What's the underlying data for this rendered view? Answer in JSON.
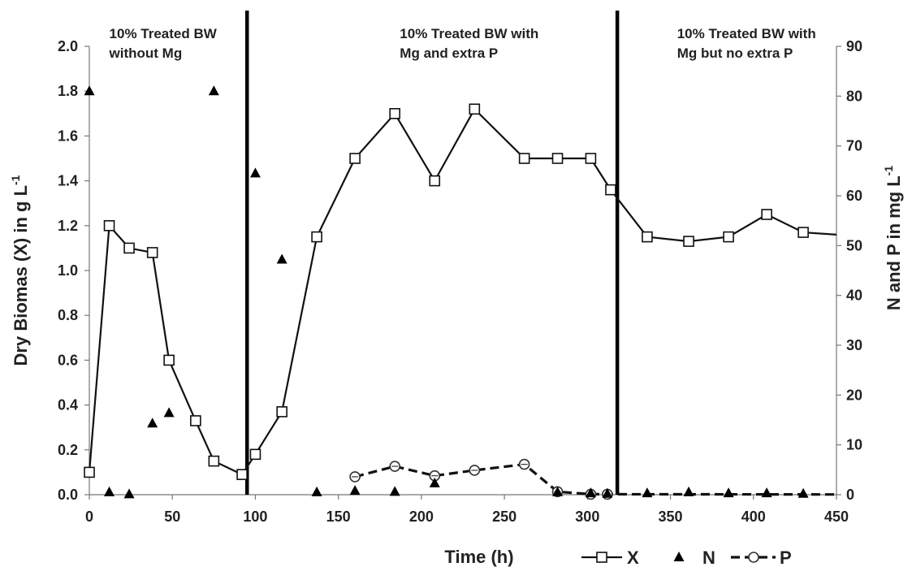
{
  "chart_data": {
    "type": "line",
    "xlabel": "Time (h)",
    "ylabel_left": "Dry Biomas (X) in g L",
    "ylabel_left_sup": "-1",
    "ylabel_right": "N and P in mg L",
    "ylabel_right_sup": "-1",
    "xlim": [
      0,
      450
    ],
    "ylim_left": [
      0,
      2.0
    ],
    "ylim_right": [
      0,
      90
    ],
    "x_ticks": [
      0,
      50,
      100,
      150,
      200,
      250,
      300,
      350,
      400,
      450
    ],
    "y_left_ticks": [
      "0.0",
      "0.2",
      "0.4",
      "0.6",
      "0.8",
      "1.0",
      "1.2",
      "1.4",
      "1.6",
      "1.8",
      "2.0"
    ],
    "y_right_ticks": [
      0,
      10,
      20,
      30,
      40,
      50,
      60,
      70,
      80,
      90
    ],
    "phase_lines": [
      95,
      318
    ],
    "annotations": [
      {
        "lines": [
          "10% Treated BW",
          "without Mg"
        ],
        "x": 12
      },
      {
        "lines": [
          "10% Treated BW with",
          "Mg and extra P"
        ],
        "x": 187
      },
      {
        "lines": [
          "10% Treated BW with",
          "Mg but no extra P"
        ],
        "x": 354
      }
    ],
    "series": [
      {
        "name": "X",
        "axis": "left",
        "style": "solid-square",
        "x": [
          0,
          12,
          24,
          38,
          48,
          64,
          75,
          92,
          100,
          116,
          137,
          160,
          184,
          208,
          232,
          262,
          282,
          302,
          314,
          336,
          361,
          385,
          408,
          430
        ],
        "y": [
          0.1,
          1.2,
          1.1,
          1.08,
          0.6,
          0.33,
          0.15,
          0.09,
          0.18,
          0.37,
          1.15,
          1.5,
          1.7,
          1.4,
          1.72,
          1.5,
          1.5,
          1.5,
          1.36,
          1.15,
          1.13,
          1.15,
          1.25,
          1.17
        ],
        "line_end": [
          450,
          1.16
        ]
      },
      {
        "name": "N",
        "axis": "right",
        "style": "triangle",
        "x": [
          0,
          12,
          24,
          38,
          48,
          75,
          100,
          116,
          137,
          160,
          184,
          208,
          282,
          302,
          312,
          336,
          361,
          385,
          408,
          430
        ],
        "y": [
          81,
          0.5,
          0.1,
          14.3,
          16.4,
          81,
          64.5,
          47.2,
          0.5,
          0.8,
          0.6,
          2.3,
          0.5,
          0.3,
          0.2,
          0.3,
          0.5,
          0.3,
          0.3,
          0.2
        ]
      },
      {
        "name": "P",
        "axis": "right",
        "style": "dashed-circle",
        "x": [
          160,
          184,
          208,
          232,
          262,
          282,
          302,
          312
        ],
        "y": [
          3.6,
          5.7,
          3.8,
          4.9,
          6.1,
          0.6,
          0.1,
          0.1
        ],
        "line_end": [
          450,
          0.05
        ]
      }
    ],
    "legend": {
      "position": "bottom-right",
      "labels": [
        "X",
        "N",
        "P"
      ]
    }
  }
}
